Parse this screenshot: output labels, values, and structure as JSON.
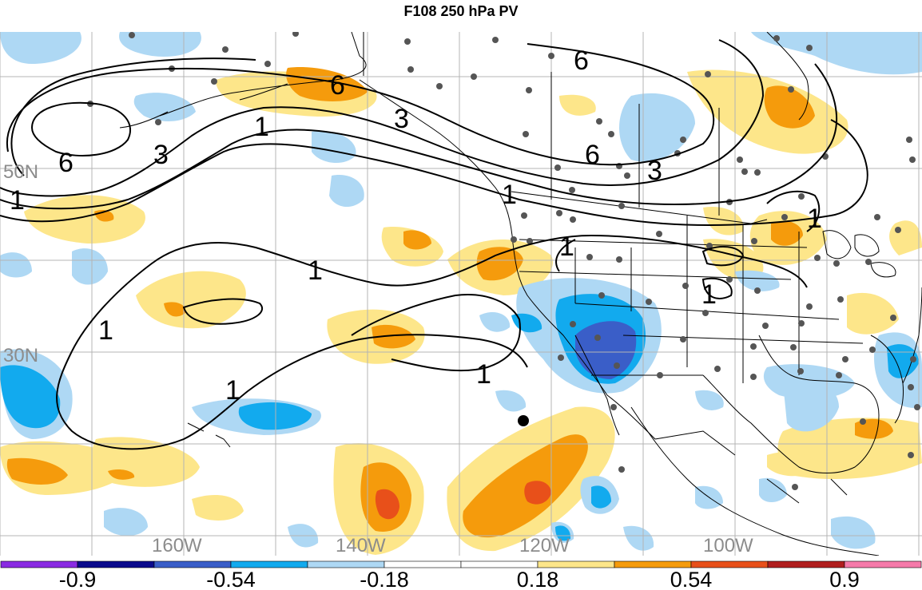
{
  "title": "F108 250 hPa PV",
  "lat_labels": [
    {
      "text": "50N",
      "lat": 50
    },
    {
      "text": "30N",
      "lat": 30
    }
  ],
  "lon_labels": [
    {
      "text": "160W",
      "lon": -160
    },
    {
      "text": "140W",
      "lon": -140
    },
    {
      "text": "120W",
      "lon": -120
    },
    {
      "text": "100W",
      "lon": -100
    }
  ],
  "contour_labels": [
    "6",
    "6",
    "6",
    "6",
    "3",
    "3",
    "3",
    "1",
    "1",
    "1",
    "1",
    "1",
    "1",
    "1",
    "1",
    "1",
    "1"
  ],
  "colorbar": {
    "colors": [
      "#8a2be2",
      "#0a0a8c",
      "#3a5ec8",
      "#12aaee",
      "#aed8f4",
      "#ffffff",
      "#ffffff",
      "#fde68a",
      "#f59b0c",
      "#e8501a",
      "#b01e1e",
      "#f57aaa"
    ],
    "tick_labels": [
      "-0.9",
      "-0.54",
      "-0.18",
      "0.18",
      "0.54",
      "0.9"
    ]
  },
  "colors": {
    "grid": "#b4b4b4",
    "axis_label": "#8c8c8c",
    "coast": "#000000"
  },
  "marker_icon": "black-dot-icon"
}
